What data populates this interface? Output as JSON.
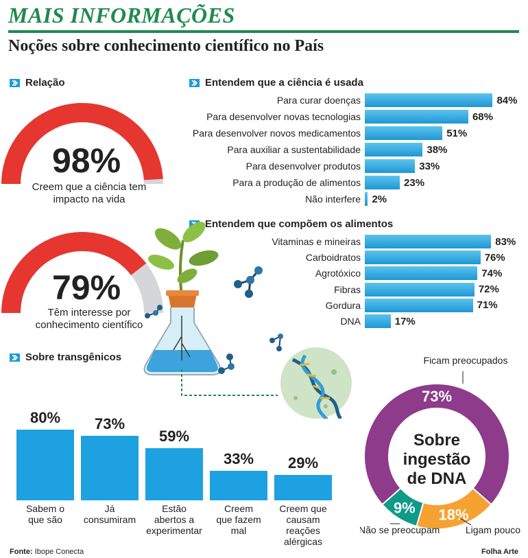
{
  "header": {
    "title": "MAIS INFORMAÇÕES",
    "subtitle": "Noções sobre conhecimento científico no País"
  },
  "sections": {
    "relacao": "Relação",
    "uso": "Entendem que a ciência é usada",
    "alimentos": "Entendem que compõem os alimentos",
    "transgenicos": "Sobre transgênicos"
  },
  "gauges": [
    {
      "value_label": "98%",
      "caption_1": "Creem que a ciência tem",
      "caption_2": "impacto na vida",
      "fraction": 0.98
    },
    {
      "value_label": "79%",
      "caption_1": "Têm interesse por",
      "caption_2": "conhecimento científico",
      "fraction": 0.79
    }
  ],
  "colors": {
    "gauge_red": "#e63630",
    "gauge_gray": "#d4d6da",
    "bar_blue": "#1da1e0",
    "brand_green": "#1f8a4c",
    "donut_purple": "#8e3b8c",
    "donut_orange": "#f5a232",
    "donut_teal": "#0f9a8a"
  },
  "chart_data": [
    {
      "type": "bar",
      "orientation": "horizontal",
      "categories": [
        "Para curar doenças",
        "Para desenvolver novas tecnologias",
        "Para desenvolver novos medicamentos",
        "Para auxiliar a sustentabilidade",
        "Para desenvolver produtos",
        "Para a produção de alimentos",
        "Não interfere"
      ],
      "values": [
        84,
        68,
        51,
        38,
        33,
        23,
        2
      ],
      "labels": [
        "84%",
        "68%",
        "51%",
        "38%",
        "33%",
        "23%",
        "2%"
      ]
    },
    {
      "type": "bar",
      "orientation": "horizontal",
      "categories": [
        "Vitaminas e mineiras",
        "Carboidratos",
        "Agrotóxico",
        "Fibras",
        "Gordura",
        "DNA"
      ],
      "values": [
        83,
        76,
        74,
        72,
        71,
        17
      ],
      "labels": [
        "83%",
        "76%",
        "74%",
        "72%",
        "71%",
        "17%"
      ]
    },
    {
      "type": "bar",
      "orientation": "vertical",
      "categories": [
        "Sabem o que são",
        "Já consumiram",
        "Estão abertos a experimentar",
        "Creem que fazem mal",
        "Creem que causam reações alérgicas"
      ],
      "category_lines": [
        [
          "Sabem o",
          "que são"
        ],
        [
          "Já",
          "consumiram"
        ],
        [
          "Estão",
          "abertos a",
          "experimentar"
        ],
        [
          "Creem",
          "que fazem",
          "mal"
        ],
        [
          "Creem que",
          "causam reações",
          "alérgicas"
        ]
      ],
      "values": [
        80,
        73,
        59,
        33,
        29
      ],
      "labels": [
        "80%",
        "73%",
        "59%",
        "33%",
        "29%"
      ]
    },
    {
      "type": "pie",
      "style": "donut",
      "center_lines": [
        "Sobre",
        "ingestão",
        "de DNA"
      ],
      "slices": [
        {
          "name": "Ficam preocupados",
          "value": 73,
          "label": "73%"
        },
        {
          "name": "Ligam pouco",
          "value": 18,
          "label": "18%"
        },
        {
          "name": "Não se preocupam",
          "value": 9,
          "label": "9%"
        }
      ]
    }
  ],
  "footer": {
    "fonte_label": "Fonte:",
    "fonte_value": "Ibope Conecta",
    "credit": "Folha Arte"
  }
}
